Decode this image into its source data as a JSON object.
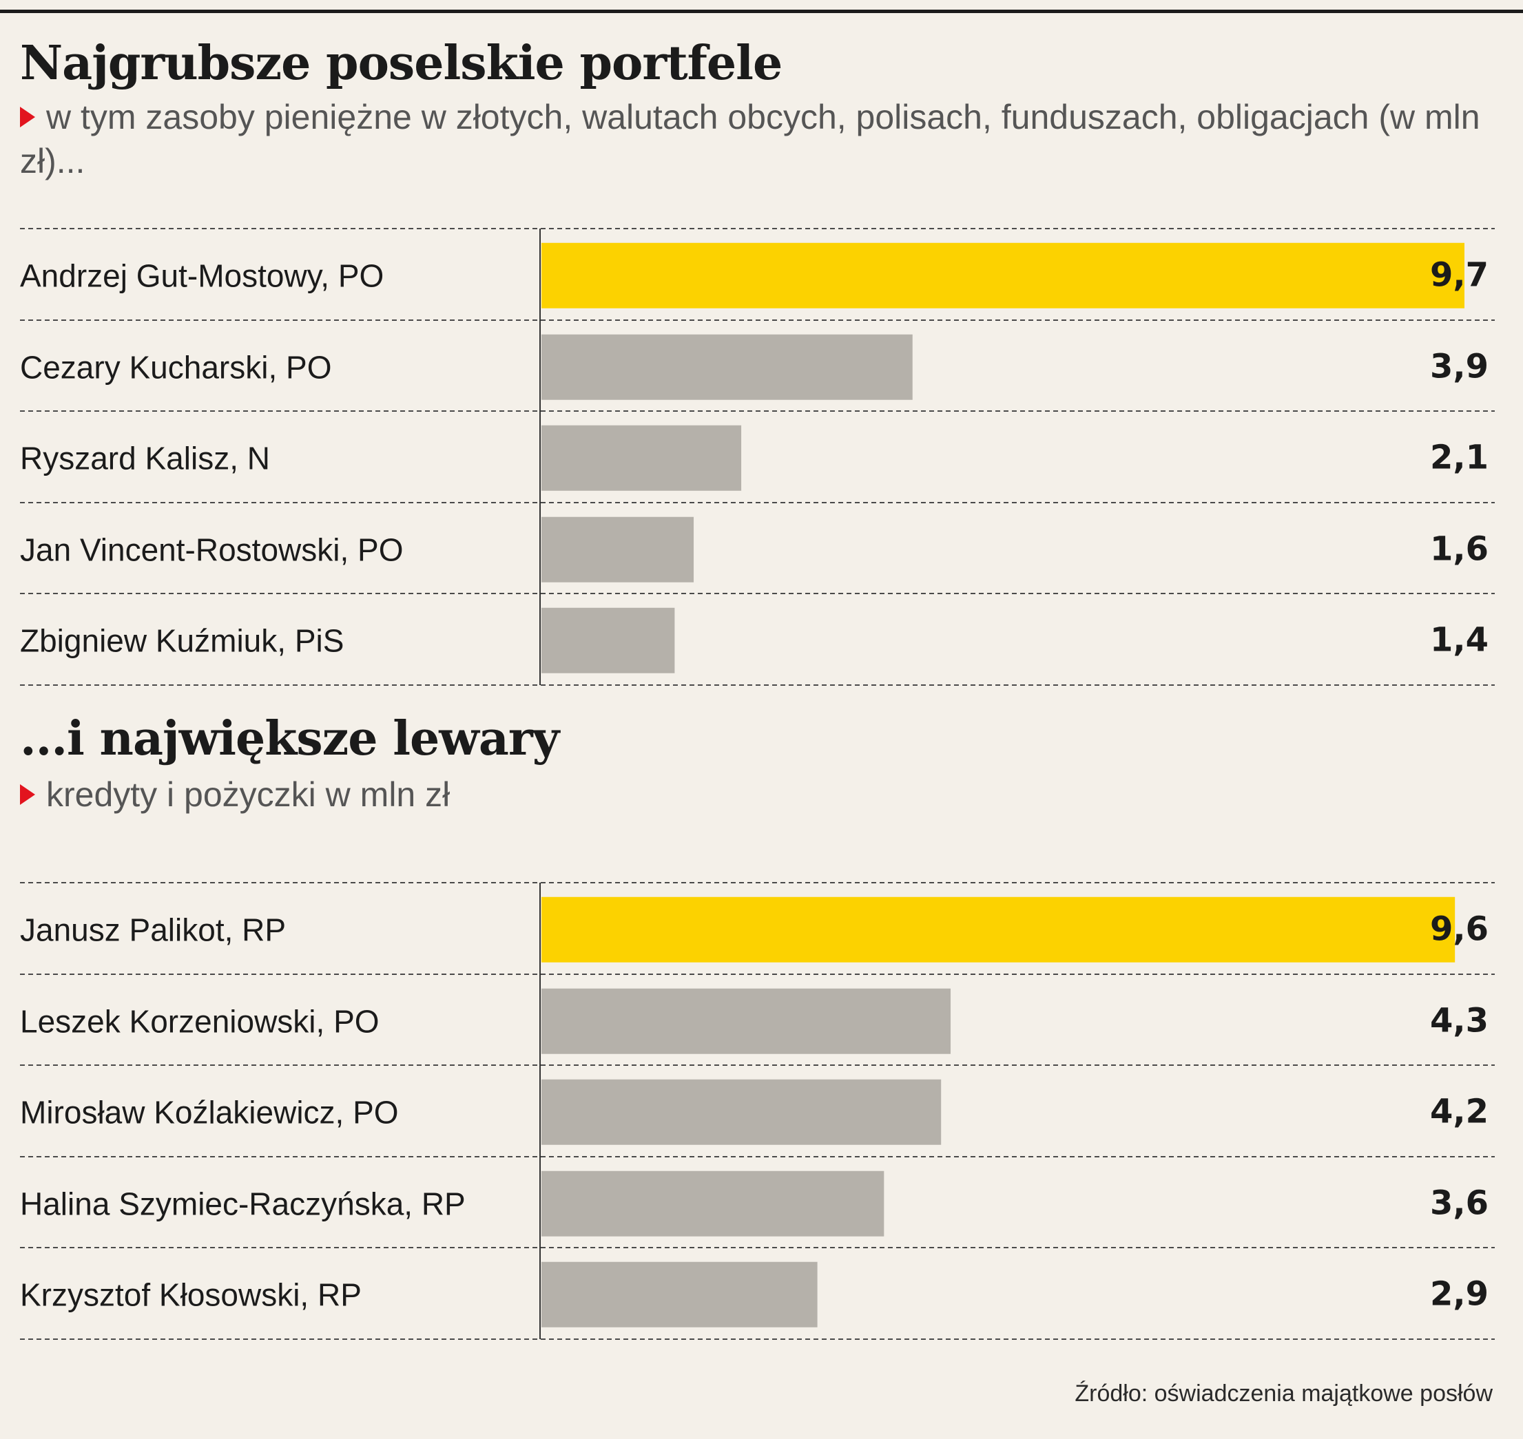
{
  "colors": {
    "highlight": "#fcd200",
    "bar": "#b5b1aa",
    "marker": "#e2141e",
    "background": "#f4f0e9"
  },
  "source": "Źródło: oświadczenia majątkowe posłów",
  "chart_data": [
    {
      "type": "bar",
      "orientation": "horizontal",
      "title": "Najgrubsze poselskie portfele",
      "subtitle": "w tym zasoby pieniężne w złotych, walutach obcych, polisach, funduszach, obligacjach (w mln zł)...",
      "categories": [
        "Andrzej Gut-Mostowy, PO",
        "Cezary Kucharski, PO",
        "Ryszard Kalisz, N",
        "Jan Vincent-Rostowski, PO",
        "Zbigniew Kuźmiuk, PiS"
      ],
      "values": [
        9.7,
        3.9,
        2.1,
        1.6,
        1.4
      ],
      "value_labels": [
        "9,7",
        "3,9",
        "2,1",
        "1,6",
        "1,4"
      ],
      "highlight_index": 0
    },
    {
      "type": "bar",
      "orientation": "horizontal",
      "title": "...i największe lewary",
      "subtitle": "kredyty i pożyczki w mln zł",
      "categories": [
        "Janusz Palikot, RP",
        "Leszek Korzeniowski, PO",
        "Mirosław Koźlakiewicz, PO",
        "Halina Szymiec-Raczyńska, RP",
        "Krzysztof Kłosowski, RP"
      ],
      "values": [
        9.6,
        4.3,
        4.2,
        3.6,
        2.9
      ],
      "value_labels": [
        "9,6",
        "4,3",
        "4,2",
        "3,6",
        "2,9"
      ],
      "highlight_index": 0
    }
  ]
}
